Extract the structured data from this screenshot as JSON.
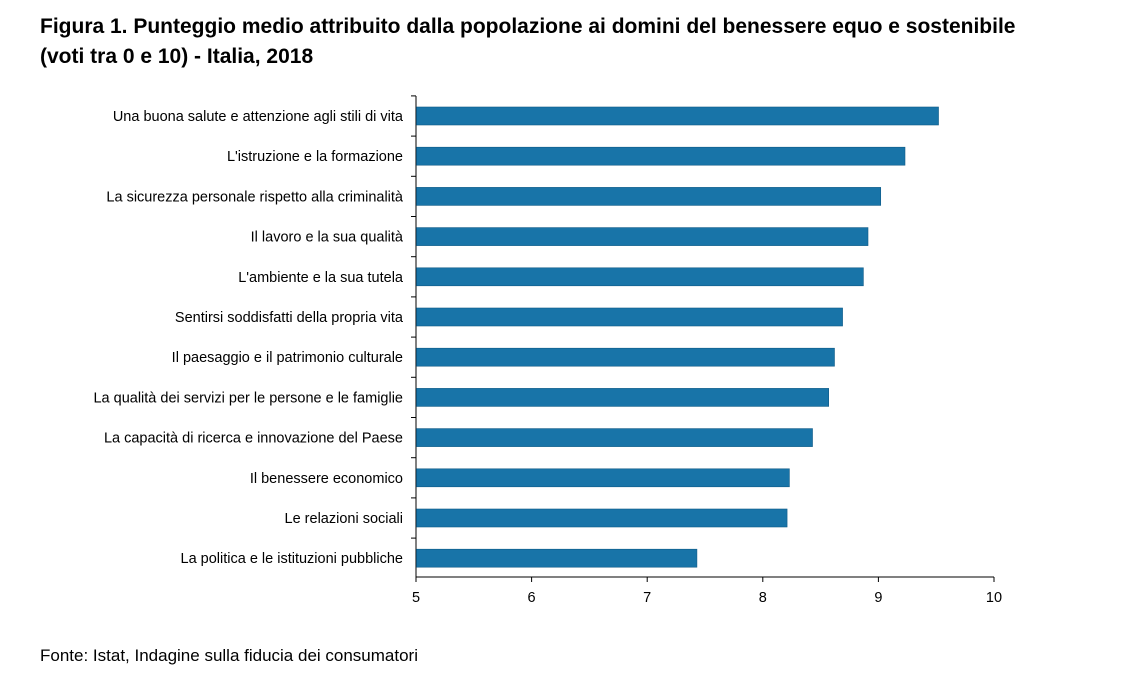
{
  "chart_data": {
    "type": "bar",
    "orientation": "horizontal",
    "title_line1": "Figura 1. Punteggio medio attribuito dalla popolazione ai domini del benessere equo e sostenibile",
    "title_line2": "(voti tra 0 e 10)  -  Italia,  2018",
    "source": "Fonte: Istat, Indagine sulla fiducia dei consumatori",
    "categories": [
      "Una buona salute e attenzione agli stili di vita",
      "L'istruzione e la formazione",
      "La sicurezza personale rispetto alla criminalità",
      "Il lavoro e la sua qualità",
      "L'ambiente e la sua tutela",
      "Sentirsi soddisfatti della propria vita",
      "Il paesaggio e il patrimonio culturale",
      "La qualità dei servizi per le persone e le famiglie",
      "La capacità di ricerca e innovazione del Paese",
      "Il benessere economico",
      "Le relazioni sociali",
      "La politica e le istituzioni pubbliche"
    ],
    "values": [
      9.52,
      9.23,
      9.02,
      8.91,
      8.87,
      8.69,
      8.62,
      8.57,
      8.43,
      8.23,
      8.21,
      7.43
    ],
    "xlim": [
      5,
      10
    ],
    "xticks": [
      "5",
      "6",
      "7",
      "8",
      "9",
      "10"
    ],
    "grid": false,
    "bar_color": "#1874a8"
  }
}
